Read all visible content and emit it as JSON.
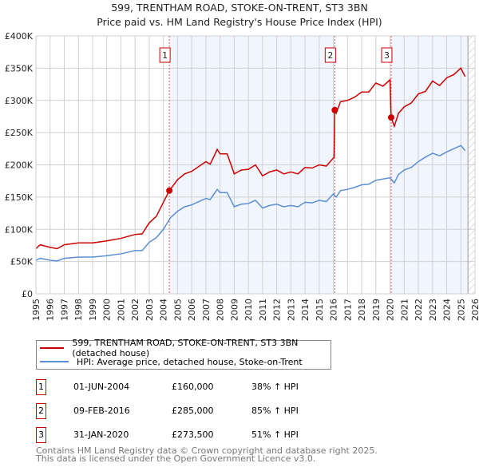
{
  "chart_data": {
    "type": "line",
    "title": "599, TRENTHAM ROAD, STOKE-ON-TRENT, ST3 3BN",
    "subtitle": "Price paid vs. HM Land Registry's House Price Index (HPI)",
    "xlim": [
      1995,
      2026
    ],
    "ylim": [
      0,
      400000
    ],
    "grid": true,
    "y_ticks": [
      {
        "v": 0,
        "label": "£0"
      },
      {
        "v": 50000,
        "label": "£50K"
      },
      {
        "v": 100000,
        "label": "£100K"
      },
      {
        "v": 150000,
        "label": "£150K"
      },
      {
        "v": 200000,
        "label": "£200K"
      },
      {
        "v": 250000,
        "label": "£250K"
      },
      {
        "v": 300000,
        "label": "£300K"
      },
      {
        "v": 350000,
        "label": "£350K"
      },
      {
        "v": 400000,
        "label": "£400K"
      }
    ],
    "x_ticks": [
      "1995",
      "1996",
      "1997",
      "1998",
      "1999",
      "2000",
      "2001",
      "2002",
      "2003",
      "2004",
      "2005",
      "2006",
      "2007",
      "2008",
      "2009",
      "2010",
      "2011",
      "2012",
      "2013",
      "2014",
      "2015",
      "2016",
      "2017",
      "2018",
      "2019",
      "2020",
      "2021",
      "2022",
      "2023",
      "2024",
      "2025",
      "2026"
    ],
    "series": [
      {
        "name": "599, TRENTHAM ROAD, STOKE-ON-TRENT, ST3 3BN (detached house)",
        "color": "#cc0000",
        "x": [
          1995,
          1995.3,
          1996,
          1996.5,
          1997,
          1998,
          1999,
          2000,
          2001,
          2002,
          2002.5,
          2003,
          2003.5,
          2004,
          2004.42,
          2005,
          2005.5,
          2006,
          2007,
          2007.3,
          2007.8,
          2008,
          2008.5,
          2009,
          2009.5,
          2010,
          2010.5,
          2011,
          2011.5,
          2012,
          2012.5,
          2013,
          2013.5,
          2014,
          2014.5,
          2015,
          2015.5,
          2016.05,
          2016.1,
          2016.2,
          2016.5,
          2017,
          2017.5,
          2018,
          2018.5,
          2019,
          2019.5,
          2020,
          2020.08,
          2020.3,
          2020.6,
          2021,
          2021.5,
          2022,
          2022.5,
          2023,
          2023.5,
          2024,
          2024.5,
          2025,
          2025.3
        ],
        "y": [
          70,
          76,
          72,
          70,
          76,
          79,
          79,
          82,
          86,
          92,
          93,
          110,
          120,
          142,
          160,
          177,
          186,
          190,
          205,
          201,
          224,
          217,
          217,
          186,
          192,
          193,
          200,
          183,
          189,
          192,
          186,
          189,
          186,
          196,
          195,
          200,
          198,
          212,
          285,
          280,
          298,
          300,
          305,
          313,
          313,
          327,
          322,
          332,
          273.5,
          260,
          280,
          290,
          296,
          310,
          314,
          330,
          323,
          335,
          340,
          350,
          337
        ]
      },
      {
        "name": "HPI: Average price, detached house, Stoke-on-Trent",
        "color": "#5b8fd4",
        "x": [
          1995,
          1995.3,
          1996,
          1996.5,
          1997,
          1998,
          1999,
          2000,
          2001,
          2002,
          2002.5,
          2003,
          2003.5,
          2004,
          2004.5,
          2005,
          2005.5,
          2006,
          2007,
          2007.3,
          2007.8,
          2008,
          2008.5,
          2009,
          2009.5,
          2010,
          2010.5,
          2011,
          2011.5,
          2012,
          2012.5,
          2013,
          2013.5,
          2014,
          2014.5,
          2015,
          2015.5,
          2016,
          2016.2,
          2016.5,
          2017,
          2017.5,
          2018,
          2018.5,
          2019,
          2019.5,
          2020,
          2020.3,
          2020.6,
          2021,
          2021.5,
          2022,
          2022.5,
          2023,
          2023.5,
          2024,
          2024.5,
          2025,
          2025.3
        ],
        "y": [
          52,
          55,
          52,
          51,
          55,
          57,
          57,
          59,
          62,
          67,
          67,
          80,
          87,
          100,
          118,
          128,
          135,
          138,
          148,
          146,
          162,
          157,
          157,
          135,
          139,
          140,
          145,
          133,
          137,
          139,
          135,
          137,
          135,
          142,
          141,
          145,
          143,
          155,
          150,
          160,
          162,
          165,
          169,
          170,
          176,
          178,
          180,
          172,
          185,
          192,
          196,
          205,
          212,
          218,
          214,
          220,
          225,
          230,
          222
        ]
      }
    ],
    "y_unit": "thousands GBP",
    "shaded_ranges": [
      [
        2004.42,
        2016.1
      ],
      [
        2020.08,
        2025.5
      ]
    ],
    "hatched_from": 2025.5,
    "markers": [
      {
        "label": "1",
        "x": 2004.42,
        "y": 160
      },
      {
        "label": "2",
        "x": 2016.1,
        "y": 285
      },
      {
        "label": "3",
        "x": 2020.08,
        "y": 273.5
      }
    ],
    "legend_position": "below"
  },
  "sales": [
    {
      "num": "1",
      "date": "01-JUN-2004",
      "price": "£160,000",
      "hpi": "38% ↑ HPI"
    },
    {
      "num": "2",
      "date": "09-FEB-2016",
      "price": "£285,000",
      "hpi": "85% ↑ HPI"
    },
    {
      "num": "3",
      "date": "31-JAN-2020",
      "price": "£273,500",
      "hpi": "51% ↑ HPI"
    }
  ],
  "footer": {
    "line1": "Contains HM Land Registry data © Crown copyright and database right 2025.",
    "line2": "This data is licensed under the Open Government Licence v3.0."
  }
}
